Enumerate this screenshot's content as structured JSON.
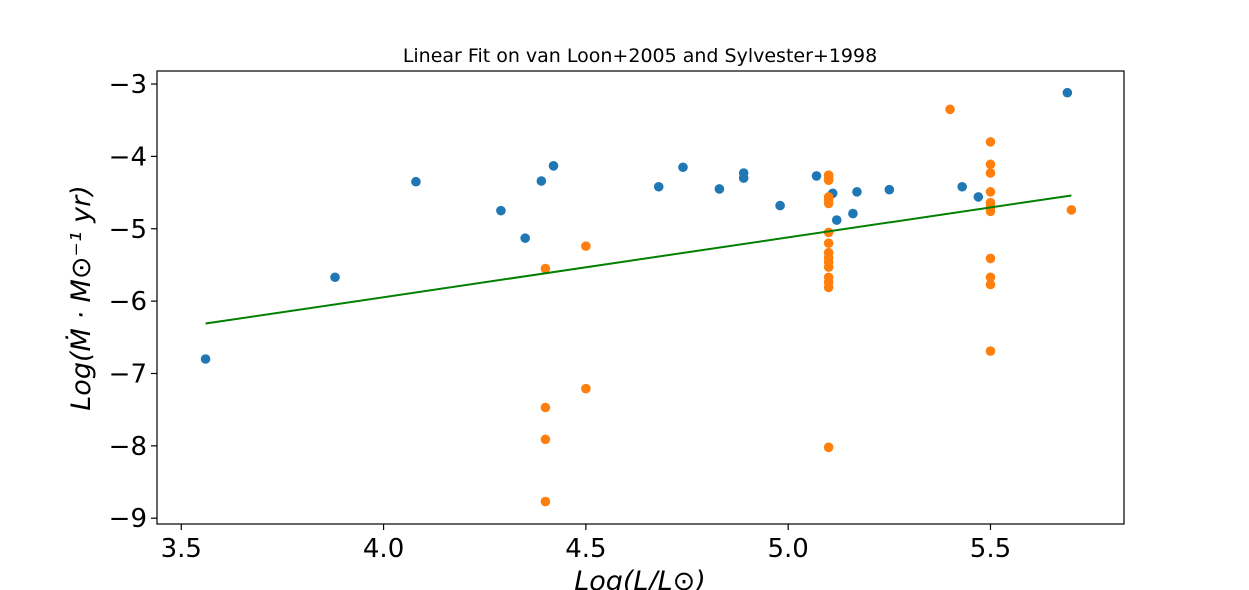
{
  "chart_data": {
    "type": "scatter",
    "title": "Linear Fit on van Loon+2005 and Sylvester+1998",
    "xlabel": "Log(L/L⊙)",
    "ylabel": "Log(Ṁ · M⊙⁻¹ yr)",
    "xlim": [
      3.44,
      5.83
    ],
    "ylim": [
      -9.08,
      -2.82
    ],
    "xticks": [
      3.5,
      4.0,
      4.5,
      5.0,
      5.5
    ],
    "xtick_labels": [
      "3.5",
      "4.0",
      "4.5",
      "5.0",
      "5.5"
    ],
    "yticks": [
      -3,
      -4,
      -5,
      -6,
      -7,
      -8,
      -9
    ],
    "ytick_labels": [
      "−3",
      "−4",
      "−5",
      "−6",
      "−7",
      "−8",
      "−9"
    ],
    "grid": false,
    "series": [
      {
        "color": "#1f77b4",
        "type": "scatter",
        "points": [
          [
            3.56,
            -6.8
          ],
          [
            3.88,
            -5.67
          ],
          [
            4.08,
            -4.35
          ],
          [
            4.29,
            -4.75
          ],
          [
            4.35,
            -5.13
          ],
          [
            4.39,
            -4.34
          ],
          [
            4.42,
            -4.13
          ],
          [
            4.68,
            -4.42
          ],
          [
            4.74,
            -4.15
          ],
          [
            4.83,
            -4.45
          ],
          [
            4.89,
            -4.23
          ],
          [
            4.89,
            -4.3
          ],
          [
            4.98,
            -4.68
          ],
          [
            5.07,
            -4.27
          ],
          [
            5.11,
            -4.51
          ],
          [
            5.12,
            -4.88
          ],
          [
            5.16,
            -4.79
          ],
          [
            5.17,
            -4.49
          ],
          [
            5.25,
            -4.46
          ],
          [
            5.43,
            -4.42
          ],
          [
            5.47,
            -4.56
          ],
          [
            5.69,
            -3.12
          ]
        ]
      },
      {
        "color": "#ff7f0e",
        "type": "scatter",
        "points": [
          [
            4.4,
            -5.55
          ],
          [
            4.4,
            -7.47
          ],
          [
            4.4,
            -7.91
          ],
          [
            4.4,
            -8.77
          ],
          [
            4.5,
            -5.24
          ],
          [
            4.5,
            -7.21
          ],
          [
            5.1,
            -4.26
          ],
          [
            5.1,
            -4.29
          ],
          [
            5.1,
            -4.33
          ],
          [
            5.1,
            -4.56
          ],
          [
            5.1,
            -4.6
          ],
          [
            5.1,
            -4.65
          ],
          [
            5.1,
            -5.05
          ],
          [
            5.1,
            -5.2
          ],
          [
            5.1,
            -5.33
          ],
          [
            5.1,
            -5.4
          ],
          [
            5.1,
            -5.46
          ],
          [
            5.1,
            -5.53
          ],
          [
            5.1,
            -5.67
          ],
          [
            5.1,
            -5.74
          ],
          [
            5.1,
            -5.81
          ],
          [
            5.1,
            -8.02
          ],
          [
            5.4,
            -3.35
          ],
          [
            5.5,
            -3.8
          ],
          [
            5.5,
            -4.11
          ],
          [
            5.5,
            -4.23
          ],
          [
            5.5,
            -4.49
          ],
          [
            5.5,
            -4.64
          ],
          [
            5.5,
            -4.7
          ],
          [
            5.5,
            -4.76
          ],
          [
            5.5,
            -5.41
          ],
          [
            5.5,
            -5.67
          ],
          [
            5.5,
            -5.77
          ],
          [
            5.5,
            -6.69
          ],
          [
            5.7,
            -4.74
          ]
        ]
      },
      {
        "color": "#008000",
        "type": "line",
        "points": [
          [
            3.56,
            -6.31
          ],
          [
            5.7,
            -4.54
          ]
        ]
      }
    ]
  }
}
